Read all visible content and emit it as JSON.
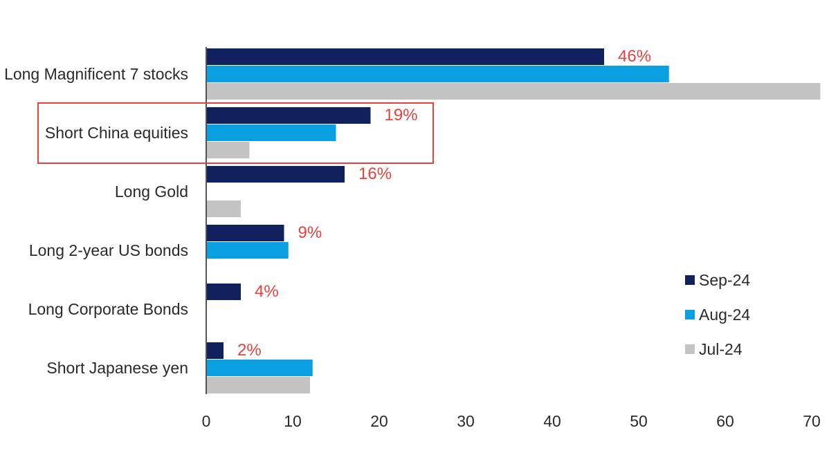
{
  "chart_data": {
    "type": "bar",
    "orientation": "horizontal",
    "categories": [
      "Long Magnificent 7 stocks",
      "Short China equities",
      "Long Gold",
      "Long 2-year US bonds",
      "Long Corporate Bonds",
      "Short Japanese yen"
    ],
    "series": [
      {
        "name": "Sep-24",
        "color": "#10215e",
        "values": [
          46,
          19,
          16,
          9,
          4,
          2
        ]
      },
      {
        "name": "Aug-24",
        "color": "#0aa0e0",
        "values": [
          53.5,
          15,
          null,
          9.5,
          null,
          12.3
        ]
      },
      {
        "name": "Jul-24",
        "color": "#c4c4c4",
        "values": [
          71,
          5,
          4,
          null,
          null,
          12
        ]
      }
    ],
    "data_labels": [
      "46%",
      "19%",
      "16%",
      "9%",
      "4%",
      "2%"
    ],
    "data_label_color": "#e8413c",
    "x_ticks": [
      "0",
      "10",
      "20",
      "30",
      "40",
      "50",
      "60",
      "70"
    ],
    "xlim": [
      0,
      71
    ],
    "title": "",
    "xlabel": "",
    "ylabel": "",
    "grid": false,
    "legend": "right",
    "highlight": {
      "category": "Short China equities",
      "color": "#e8413c"
    }
  }
}
